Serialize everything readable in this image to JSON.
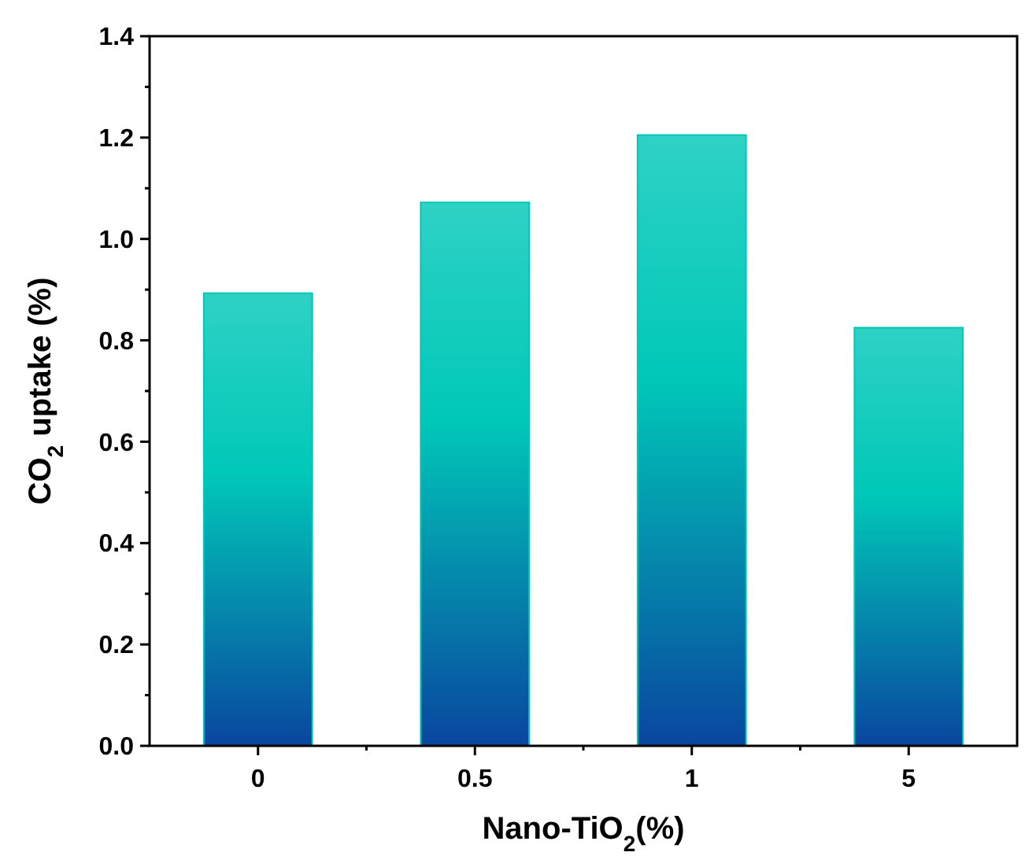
{
  "chart_data": {
    "type": "bar",
    "xlabel": "Nano-TiO$_{2}$(%)",
    "ylabel": "CO$_{2}$ uptake (%)",
    "categories": [
      "0",
      "0.5",
      "1",
      "5"
    ],
    "values": [
      0.893,
      1.072,
      1.205,
      0.825
    ],
    "color": "#00c8b8",
    "ylim": [
      0,
      1.4
    ],
    "yticks": [
      {
        "value": 0,
        "label": "0.0"
      },
      {
        "value": 0.2,
        "label": "0.2"
      },
      {
        "value": 0.4,
        "label": "0.4"
      },
      {
        "value": 0.6,
        "label": "0.6"
      },
      {
        "value": 0.8,
        "label": "0.8"
      },
      {
        "value": 1,
        "label": "1.0"
      },
      {
        "value": 1.2,
        "label": "1.2"
      },
      {
        "value": 1.4,
        "label": "1.4"
      }
    ],
    "grid": false
  }
}
